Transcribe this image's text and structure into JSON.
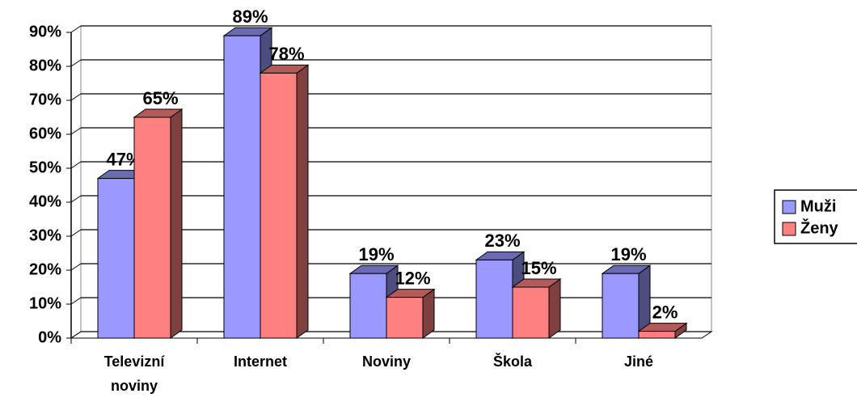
{
  "chart_data": {
    "type": "bar3d",
    "categories": [
      "Televizní noviny",
      "Internet",
      "Noviny",
      "Škola",
      "Jiné"
    ],
    "series": [
      {
        "name": "Muži",
        "color": "#9999ff",
        "values": [
          47,
          89,
          19,
          23,
          19
        ],
        "value_labels": [
          "47%",
          "89%",
          "19%",
          "23%",
          "19%"
        ]
      },
      {
        "name": "Ženy",
        "color": "#ff8080",
        "values": [
          65,
          78,
          12,
          15,
          2
        ],
        "value_labels": [
          "65%",
          "78%",
          "12%",
          "15%",
          "2%"
        ]
      }
    ],
    "ylim": [
      0,
      90
    ],
    "yticks": [
      {
        "value": 0,
        "label": "0%"
      },
      {
        "value": 10,
        "label": "10%"
      },
      {
        "value": 20,
        "label": "20%"
      },
      {
        "value": 30,
        "label": "30%"
      },
      {
        "value": 40,
        "label": "40%"
      },
      {
        "value": 50,
        "label": "50%"
      },
      {
        "value": 60,
        "label": "60%"
      },
      {
        "value": 70,
        "label": "70%"
      },
      {
        "value": 80,
        "label": "80%"
      },
      {
        "value": 90,
        "label": "90%"
      }
    ],
    "grid": true,
    "legend": "right"
  }
}
